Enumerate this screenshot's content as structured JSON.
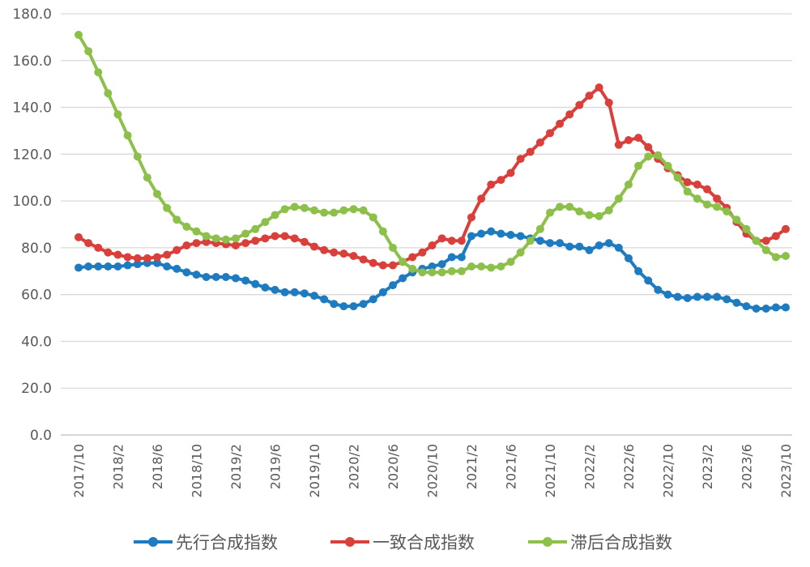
{
  "chart_data": {
    "type": "line",
    "title": "",
    "xlabel": "",
    "ylabel": "",
    "ylim": [
      0,
      180
    ],
    "yticks": [
      "0.0",
      "20.0",
      "40.0",
      "60.0",
      "80.0",
      "100.0",
      "120.0",
      "140.0",
      "160.0",
      "180.0"
    ],
    "grid": true,
    "legend_position": "bottom",
    "x_start": "2017/10",
    "x_end": "2023/10",
    "xtick_labels": [
      "2017/10",
      "2018/2",
      "2018/6",
      "2018/10",
      "2019/2",
      "2019/6",
      "2019/10",
      "2020/2",
      "2020/6",
      "2020/10",
      "2021/2",
      "2021/6",
      "2021/10",
      "2022/2",
      "2022/6",
      "2022/10",
      "2023/2",
      "2023/6",
      "2023/10"
    ],
    "series": [
      {
        "name": "先行合成指数",
        "color": "#1f7bbf",
        "values": [
          71.5,
          72,
          72,
          72,
          72,
          72.5,
          73,
          73.5,
          73.5,
          72,
          71,
          69.5,
          68.5,
          67.5,
          67.5,
          67.5,
          67,
          66,
          64.5,
          63,
          62,
          61,
          61,
          60.5,
          59.5,
          58,
          56,
          55,
          55,
          56,
          58,
          61,
          64,
          67,
          69.5,
          71,
          72,
          73,
          76,
          76,
          85,
          86,
          87,
          86,
          85.5,
          85,
          84,
          83,
          82,
          82,
          80.5,
          80.5,
          79,
          81,
          82,
          80,
          75.5,
          70,
          66,
          62,
          60,
          59,
          58.5,
          59,
          59,
          59,
          58,
          56.5,
          55,
          54,
          54,
          54.5,
          54.5
        ]
      },
      {
        "name": "一致合成指数",
        "color": "#d9403b",
        "values": [
          84.5,
          82,
          80,
          78,
          77,
          76,
          75.5,
          75.5,
          76,
          77,
          79,
          81,
          82,
          82.5,
          82,
          81.5,
          81,
          82,
          83,
          84,
          85,
          85,
          84,
          82.5,
          80.5,
          79,
          78,
          77.5,
          76.5,
          75,
          73.5,
          72.5,
          72.5,
          74,
          76,
          78,
          81,
          84,
          83,
          83,
          93,
          101,
          107,
          109,
          112,
          118,
          121,
          125,
          129,
          133,
          137,
          141,
          145,
          148.5,
          142,
          124,
          126,
          127,
          123,
          118,
          114,
          111,
          108,
          107,
          105,
          101,
          97,
          91,
          86,
          83,
          83,
          85,
          88
        ]
      },
      {
        "name": "滞后合成指数",
        "color": "#8dc04a",
        "values": [
          171,
          164,
          155,
          146,
          137,
          128,
          119,
          110,
          103,
          97,
          92,
          89,
          87,
          85,
          84,
          83.5,
          84,
          86,
          88,
          91,
          94,
          96.5,
          97.5,
          97,
          96,
          95,
          95,
          96,
          96.5,
          96,
          93,
          87,
          80,
          74,
          71,
          69.5,
          69.5,
          69.5,
          70,
          70,
          72,
          72,
          71.5,
          72,
          74,
          78,
          83,
          88,
          95,
          97.5,
          97.5,
          95.5,
          94,
          93.5,
          96,
          101,
          107,
          115,
          119,
          119.5,
          115,
          110,
          104,
          101,
          98.5,
          97.5,
          95.5,
          92,
          88,
          83,
          79,
          76,
          76.5
        ]
      }
    ]
  }
}
